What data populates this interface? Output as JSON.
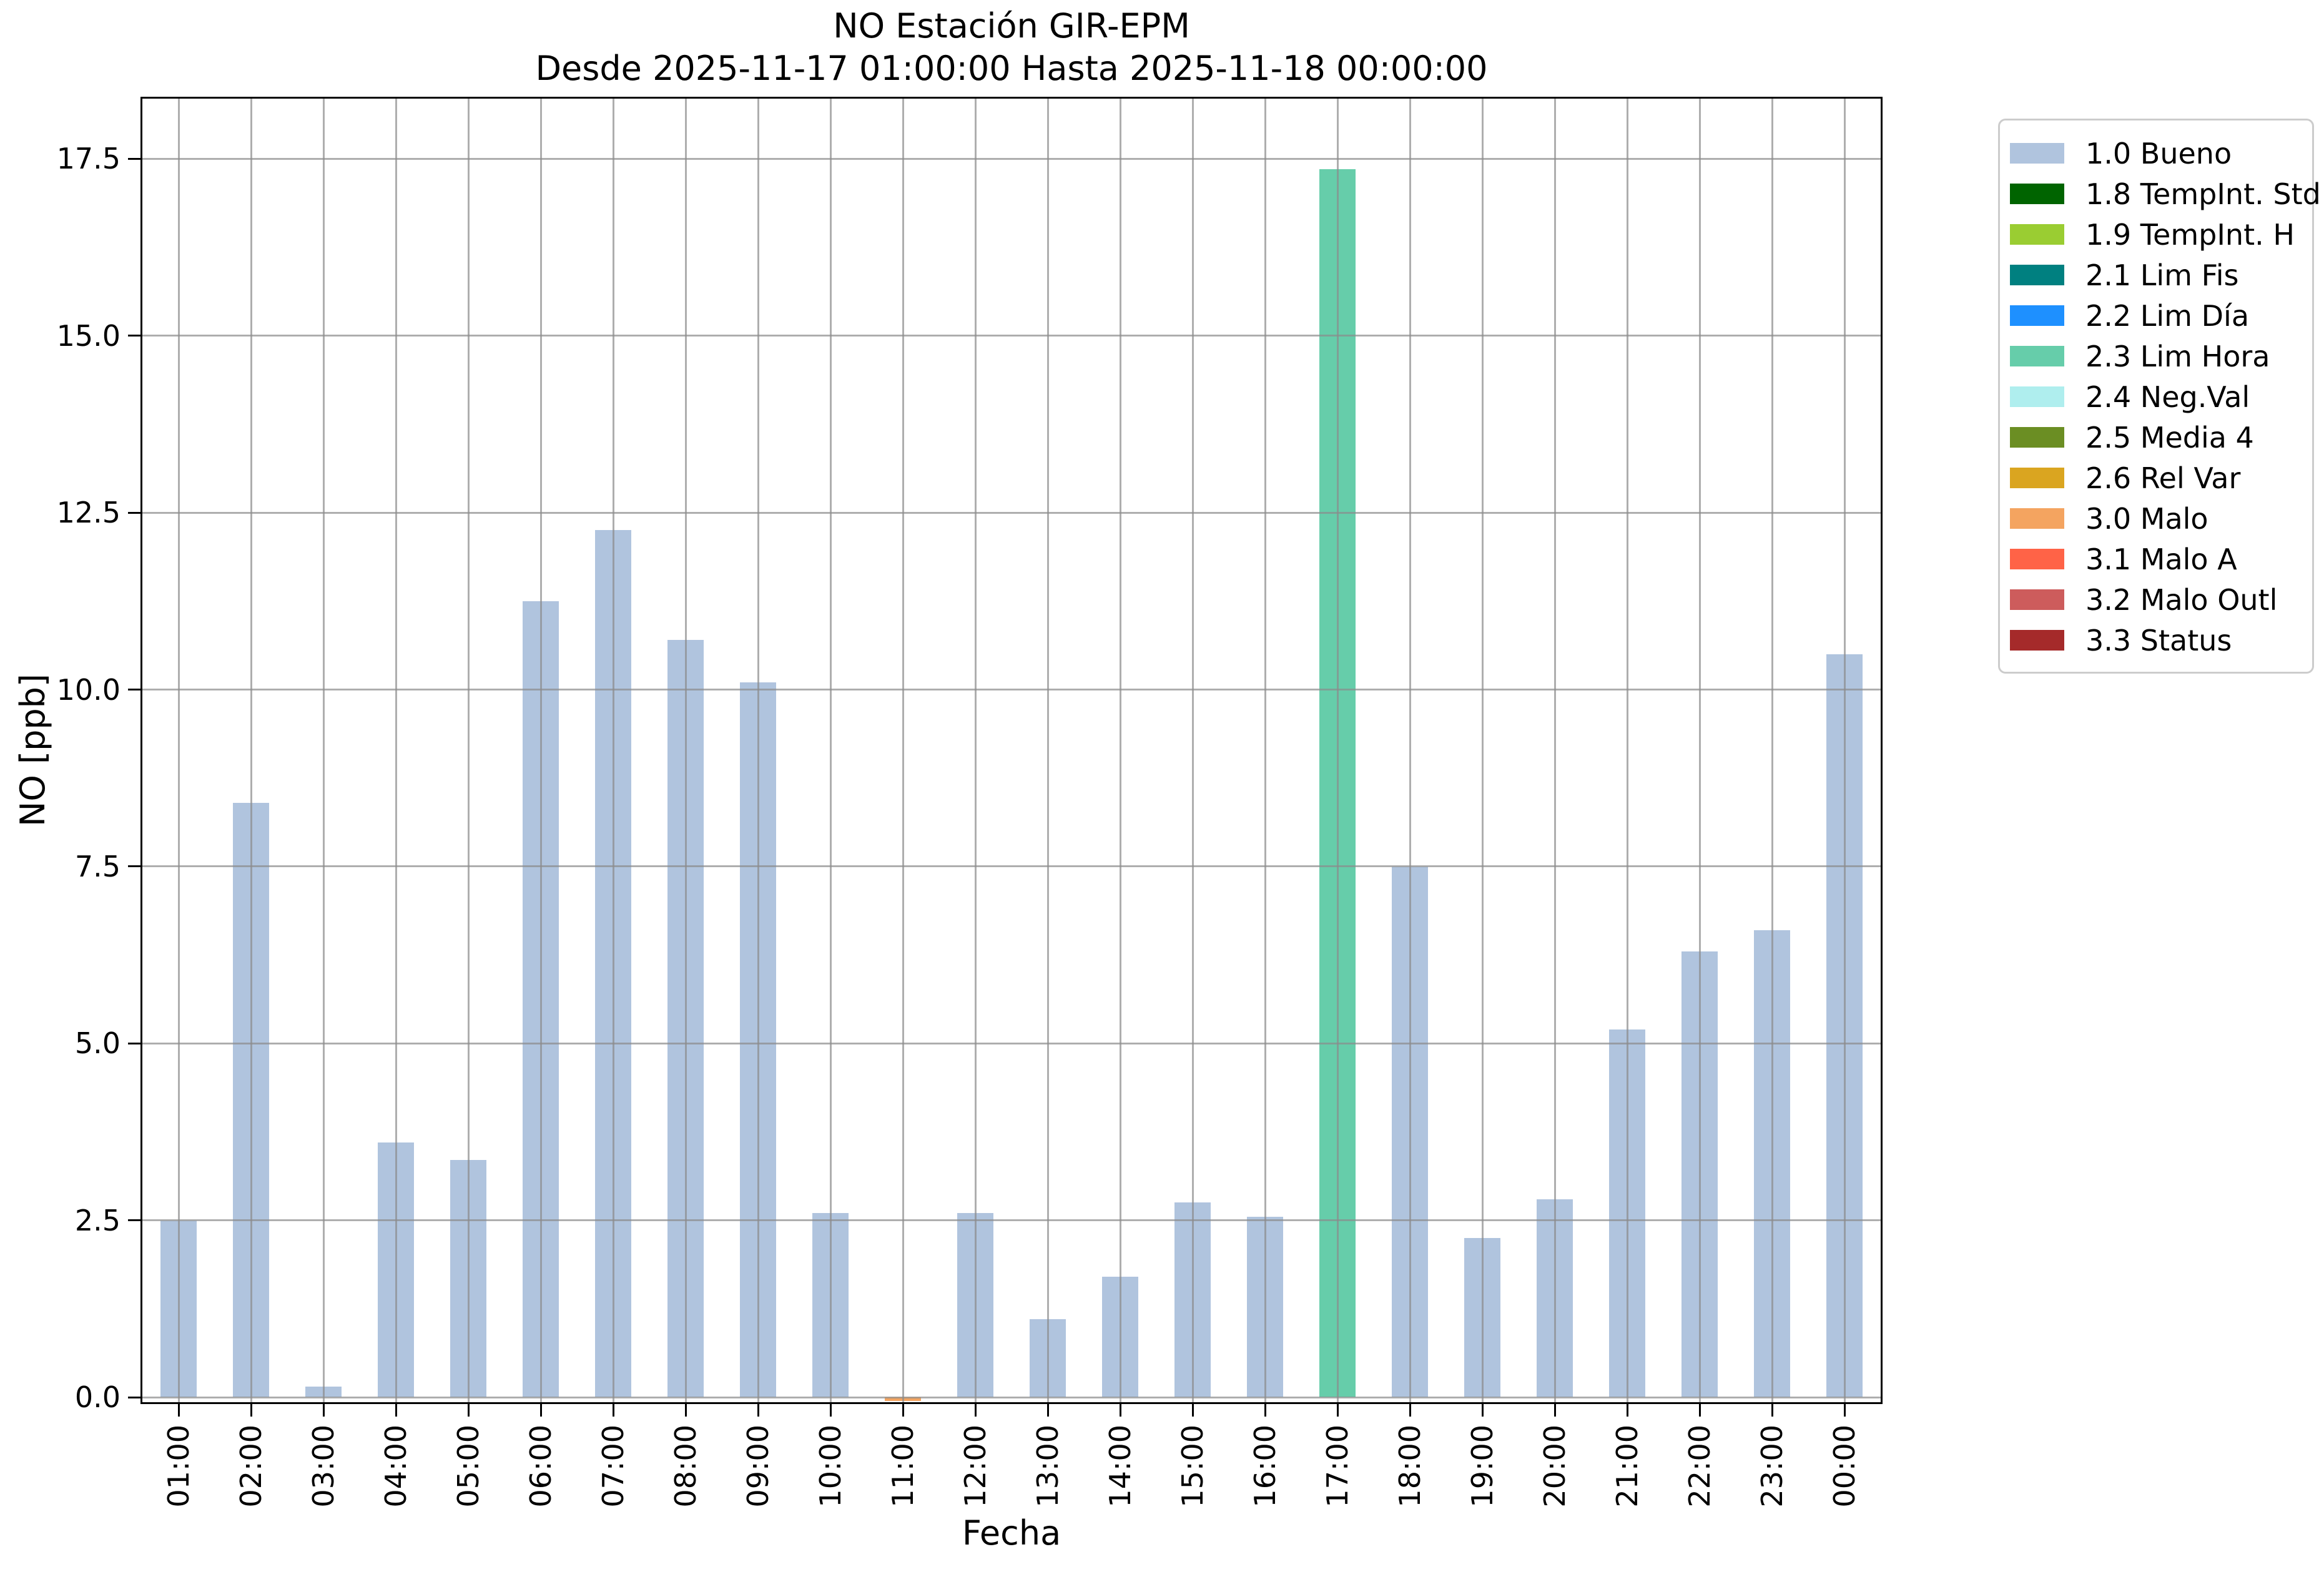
{
  "title": {
    "line1": "NO Estación GIR-EPM",
    "line2": "Desde 2025-11-17 01:00:00 Hasta 2025-11-18 00:00:00"
  },
  "y_axis": {
    "label": "NO [ppb]"
  },
  "x_axis": {
    "label": "Fecha"
  },
  "colors": {
    "bueno": "#B0C4DE",
    "tempint_std": "#006400",
    "tempint_h": "#9ACD32",
    "lim_fis": "#008080",
    "lim_dia": "#1E90FF",
    "lim_hora": "#66CDAA",
    "neg_val": "#AFEEEE",
    "media_4": "#6B8E23",
    "rel_var": "#DAA520",
    "malo": "#F4A460",
    "malo_a": "#FF6347",
    "malo_outl": "#CD5C5C",
    "status": "#A52A2A"
  },
  "legend": {
    "items": [
      {
        "key": "bueno",
        "label": "1.0 Bueno"
      },
      {
        "key": "tempint_std",
        "label": "1.8 TempInt. Std"
      },
      {
        "key": "tempint_h",
        "label": "1.9 TempInt. H"
      },
      {
        "key": "lim_fis",
        "label": "2.1 Lim Fis"
      },
      {
        "key": "lim_dia",
        "label": "2.2 Lim Día"
      },
      {
        "key": "lim_hora",
        "label": "2.3 Lim Hora"
      },
      {
        "key": "neg_val",
        "label": "2.4 Neg.Val"
      },
      {
        "key": "media_4",
        "label": "2.5 Media 4"
      },
      {
        "key": "rel_var",
        "label": "2.6 Rel Var"
      },
      {
        "key": "malo",
        "label": "3.0 Malo"
      },
      {
        "key": "malo_a",
        "label": "3.1 Malo A"
      },
      {
        "key": "malo_outl",
        "label": "3.2 Malo Outl"
      },
      {
        "key": "status",
        "label": "3.3 Status"
      }
    ]
  },
  "chart_data": {
    "type": "bar",
    "title": "NO Estación GIR-EPM",
    "subtitle": "Desde 2025-11-17 01:00:00 Hasta 2025-11-18 00:00:00",
    "xlabel": "Fecha",
    "ylabel": "NO [ppb]",
    "categories": [
      "01:00",
      "02:00",
      "03:00",
      "04:00",
      "05:00",
      "06:00",
      "07:00",
      "08:00",
      "09:00",
      "10:00",
      "11:00",
      "12:00",
      "13:00",
      "14:00",
      "15:00",
      "16:00",
      "17:00",
      "18:00",
      "19:00",
      "20:00",
      "21:00",
      "22:00",
      "23:00",
      "00:00"
    ],
    "values": [
      2.5,
      8.4,
      0.15,
      3.6,
      3.35,
      11.25,
      12.25,
      10.7,
      10.1,
      2.6,
      -0.05,
      2.6,
      1.1,
      1.7,
      2.75,
      2.55,
      17.35,
      7.5,
      2.25,
      2.8,
      5.2,
      6.3,
      6.6,
      10.5
    ],
    "bar_keys": [
      "bueno",
      "bueno",
      "bueno",
      "bueno",
      "bueno",
      "bueno",
      "bueno",
      "bueno",
      "bueno",
      "bueno",
      "malo",
      "bueno",
      "bueno",
      "bueno",
      "bueno",
      "bueno",
      "lim_hora",
      "bueno",
      "bueno",
      "bueno",
      "bueno",
      "bueno",
      "bueno",
      "bueno"
    ],
    "yticks": [
      0.0,
      2.5,
      5.0,
      7.5,
      10.0,
      12.5,
      15.0,
      17.5
    ],
    "ylim": [
      -0.07,
      18.35
    ],
    "grid": true,
    "legend_position": "outside-right"
  }
}
